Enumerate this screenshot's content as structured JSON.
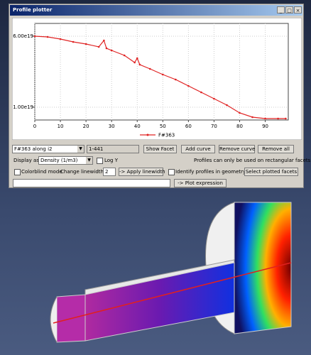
{
  "window": {
    "title": "Profile plotter"
  },
  "chart": {
    "type": "line",
    "x": [
      0,
      5,
      10,
      15,
      20,
      25,
      27,
      28,
      30,
      35,
      39,
      40,
      41,
      45,
      50,
      55,
      60,
      65,
      70,
      75,
      80,
      85,
      90,
      95,
      98
    ],
    "series": [
      {
        "name": "F#363",
        "color": "#e02424",
        "values": [
          6e+19,
          5.95e+19,
          5.8e+19,
          5.6e+19,
          5.45e+19,
          5.25e+19,
          5.7e+19,
          5.15e+19,
          5e+19,
          4.65e+19,
          4.15e+19,
          4.45e+19,
          4e+19,
          3.7e+19,
          3.3e+19,
          2.95e+19,
          2.5e+19,
          2.05e+19,
          1.6e+19,
          1.15e+19,
          6e+18,
          3e+18,
          2e+18,
          2e+18,
          2e+18
        ]
      }
    ],
    "xlim": [
      0,
      99
    ],
    "xticks": [
      0,
      10,
      20,
      30,
      40,
      50,
      60,
      70,
      80,
      90
    ],
    "ylim": [
      1e+18,
      6.9e+19
    ],
    "yticks": [
      {
        "value": 1e+19,
        "label": "1.00e19"
      },
      {
        "value": 6e+19,
        "label": "6.00e19"
      }
    ],
    "grid": true
  },
  "controls": {
    "profile_select": "F#363 along i2",
    "range": "1-441",
    "show_facet": "Show Facet",
    "add_curve": "Add curve",
    "remove_curve": "Remove curve",
    "remove_all": "Remove all",
    "display_as_label": "Display as:",
    "display_as": "Density (1/m3)",
    "log_y": "Log Y",
    "note": "Profiles can only be used on rectangular facets.",
    "colorblind": "Colorblind mode",
    "linewidth_label": "Change linewidth:",
    "linewidth": "2",
    "apply_linewidth": "-> Apply linewidth",
    "identify": "Identify profiles in geometry",
    "select_facets": "Select plotted facets",
    "plot_expression": "-> Plot expression"
  }
}
